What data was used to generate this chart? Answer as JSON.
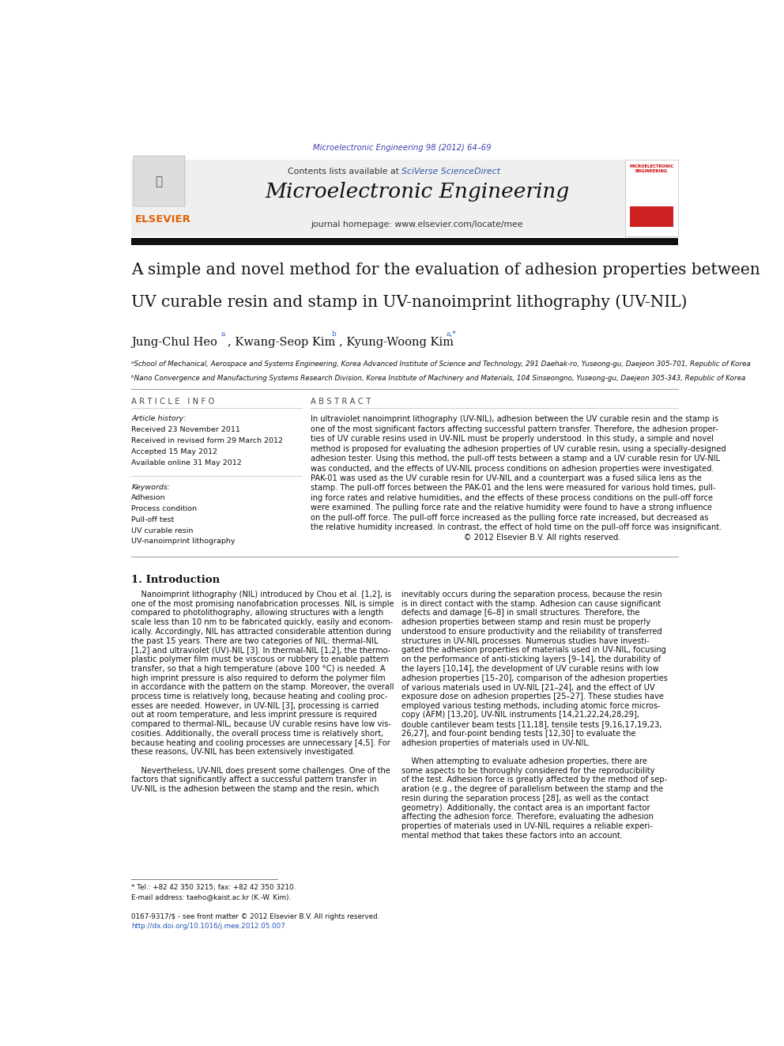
{
  "page_width": 9.92,
  "page_height": 13.23,
  "bg_color": "#ffffff",
  "journal_ref_text": "Microelectronic Engineering 98 (2012) 64–69",
  "journal_ref_color": "#4040b0",
  "header_bg_color": "#efefef",
  "journal_name": "Microelectronic Engineering",
  "contents_text": "Contents lists available at ",
  "sciverse_text": "SciVerse ScienceDirect",
  "sciverse_color": "#3355aa",
  "homepage_text": "journal homepage: www.elsevier.com/locate/mee",
  "black_bar_color": "#1a1a1a",
  "paper_title_line1": "A simple and novel method for the evaluation of adhesion properties between",
  "paper_title_line2": "UV curable resin and stamp in UV-nanoimprint lithography (UV-NIL)",
  "author1": "Jung-Chul Heo",
  "author1_sup": "a",
  "author2": ", Kwang-Seop Kim",
  "author2_sup": "b",
  "author3": ", Kyung-Woong Kim",
  "author3_sup": "a,*",
  "affil_a": "ᵃSchool of Mechanical, Aerospace and Systems Engineering, Korea Advanced Institute of Science and Technology, 291 Daehak-ro, Yuseong-gu, Daejeon 305-701, Republic of Korea",
  "affil_b": "ᵇNano Convergence and Manufacturing Systems Research Division, Korea Institute of Machinery and Materials, 104 Sinseongno, Yuseong-gu, Daejeon 305-343, Republic of Korea",
  "article_info_header": "A R T I C L E   I N F O",
  "abstract_header": "A B S T R A C T",
  "article_history_label": "Article history:",
  "received1": "Received 23 November 2011",
  "received2": "Received in revised form 29 March 2012",
  "accepted": "Accepted 15 May 2012",
  "available": "Available online 31 May 2012",
  "keywords_label": "Keywords:",
  "keywords": [
    "Adhesion",
    "Process condition",
    "Pull-off test",
    "UV curable resin",
    "UV-nanoimprint lithography"
  ],
  "abstract_lines": [
    "In ultraviolet nanoimprint lithography (UV-NIL), adhesion between the UV curable resin and the stamp is",
    "one of the most significant factors affecting successful pattern transfer. Therefore, the adhesion proper-",
    "ties of UV curable resins used in UV-NIL must be properly understood. In this study, a simple and novel",
    "method is proposed for evaluating the adhesion properties of UV curable resin, using a specially-designed",
    "adhesion tester. Using this method, the pull-off tests between a stamp and a UV curable resin for UV-NIL",
    "was conducted, and the effects of UV-NIL process conditions on adhesion properties were investigated.",
    "PAK-01 was used as the UV curable resin for UV-NIL and a counterpart was a fused silica lens as the",
    "stamp. The pull-off forces between the PAK-01 and the lens were measured for various hold times, pull-",
    "ing force rates and relative humidities, and the effects of these process conditions on the pull-off force",
    "were examined. The pulling force rate and the relative humidity were found to have a strong influence",
    "on the pull-off force. The pull-off force increased as the pulling force rate increased, but decreased as",
    "the relative humidity increased. In contrast, the effect of hold time on the pull-off force was insignificant.",
    "                                                              © 2012 Elsevier B.V. All rights reserved."
  ],
  "intro_header": "1. Introduction",
  "intro_left_lines": [
    "    Nanoimprint lithography (NIL) introduced by Chou et al. [1,2], is",
    "one of the most promising nanofabrication processes. NIL is simple",
    "compared to photolithography, allowing structures with a length",
    "scale less than 10 nm to be fabricated quickly, easily and econom-",
    "ically. Accordingly, NIL has attracted considerable attention during",
    "the past 15 years. There are two categories of NIL: thermal-NIL",
    "[1,2] and ultraviolet (UV)-NIL [3]. In thermal-NIL [1,2], the thermo-",
    "plastic polymer film must be viscous or rubbery to enable pattern",
    "transfer, so that a high temperature (above 100 °C) is needed. A",
    "high imprint pressure is also required to deform the polymer film",
    "in accordance with the pattern on the stamp. Moreover, the overall",
    "process time is relatively long, because heating and cooling proc-",
    "esses are needed. However, in UV-NIL [3], processing is carried",
    "out at room temperature, and less imprint pressure is required",
    "compared to thermal-NIL, because UV curable resins have low vis-",
    "cosities. Additionally, the overall process time is relatively short,",
    "because heating and cooling processes are unnecessary [4,5]. For",
    "these reasons, UV-NIL has been extensively investigated.",
    "",
    "    Nevertheless, UV-NIL does present some challenges. One of the",
    "factors that significantly affect a successful pattern transfer in",
    "UV-NIL is the adhesion between the stamp and the resin, which"
  ],
  "intro_right_lines": [
    "inevitably occurs during the separation process, because the resin",
    "is in direct contact with the stamp. Adhesion can cause significant",
    "defects and damage [6–8] in small structures. Therefore, the",
    "adhesion properties between stamp and resin must be properly",
    "understood to ensure productivity and the reliability of transferred",
    "structures in UV-NIL processes. Numerous studies have investi-",
    "gated the adhesion properties of materials used in UV-NIL, focusing",
    "on the performance of anti-sticking layers [9–14], the durability of",
    "the layers [10,14], the development of UV curable resins with low",
    "adhesion properties [15–20], comparison of the adhesion properties",
    "of various materials used in UV-NIL [21–24], and the effect of UV",
    "exposure dose on adhesion properties [25–27]. These studies have",
    "employed various testing methods, including atomic force micros-",
    "copy (AFM) [13,20], UV-NIL instruments [14,21,22,24,28,29],",
    "double cantilever beam tests [11,18], tensile tests [9,16,17,19,23,",
    "26,27], and four-point bending tests [12,30] to evaluate the",
    "adhesion properties of materials used in UV-NIL.",
    "",
    "    When attempting to evaluate adhesion properties, there are",
    "some aspects to be thoroughly considered for the reproducibility",
    "of the test. Adhesion force is greatly affected by the method of sep-",
    "aration (e.g., the degree of parallelism between the stamp and the",
    "resin during the separation process [28], as well as the contact",
    "geometry). Additionally, the contact area is an important factor",
    "affecting the adhesion force. Therefore, evaluating the adhesion",
    "properties of materials used in UV-NIL requires a reliable experi-",
    "mental method that takes these factors into an account."
  ],
  "footnote_star": "* Tel.: +82 42 350 3215; fax: +82 42 350 3210.",
  "footnote_email": "E-mail address: taeho@kaist.ac.kr (K.-W. Kim).",
  "issn_text": "0167-9317/$ - see front matter © 2012 Elsevier B.V. All rights reserved.",
  "doi_text": "http://dx.doi.org/10.1016/j.mee.2012.05.007",
  "doi_color": "#2255bb",
  "link_color": "#2255bb"
}
